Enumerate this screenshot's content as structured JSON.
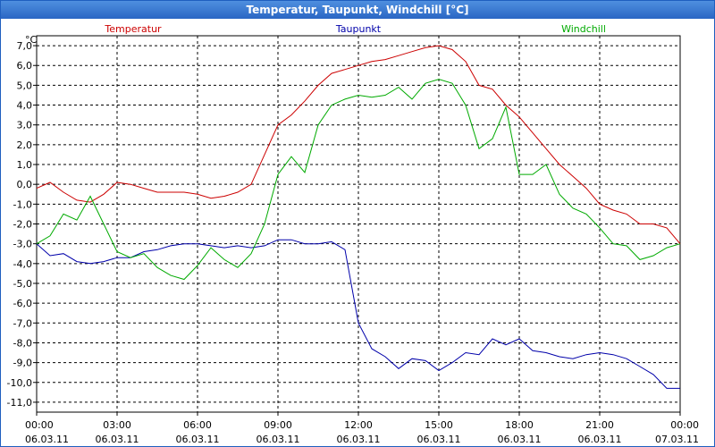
{
  "window": {
    "title": "Temperatur, Taupunkt, Windchill [°C]"
  },
  "chart_data": {
    "type": "line",
    "title": "Temperatur, Taupunkt, Windchill [°C]",
    "ylabel": "°C",
    "ylim": [
      -11.5,
      7.5
    ],
    "xlim": [
      0,
      24
    ],
    "y_ticks": [
      7,
      6,
      5,
      4,
      3,
      2,
      1,
      0,
      -1,
      -2,
      -3,
      -4,
      -5,
      -6,
      -7,
      -8,
      -9,
      -10,
      -11
    ],
    "y_tick_labels": [
      "7,0",
      "6,0",
      "5,0",
      "4,0",
      "3,0",
      "2,0",
      "1,0",
      "0,0",
      "-1,0",
      "-2,0",
      "-3,0",
      "-4,0",
      "-5,0",
      "-6,0",
      "-7,0",
      "-8,0",
      "-9,0",
      "-10,0",
      "-11,0"
    ],
    "x_ticks": [
      {
        "hour": 0,
        "time": "00:00",
        "date": "06.03.11"
      },
      {
        "hour": 3,
        "time": "03:00",
        "date": "06.03.11"
      },
      {
        "hour": 6,
        "time": "06:00",
        "date": "06.03.11"
      },
      {
        "hour": 9,
        "time": "09:00",
        "date": "06.03.11"
      },
      {
        "hour": 12,
        "time": "12:00",
        "date": "06.03.11"
      },
      {
        "hour": 15,
        "time": "15:00",
        "date": "06.03.11"
      },
      {
        "hour": 18,
        "time": "18:00",
        "date": "06.03.11"
      },
      {
        "hour": 21,
        "time": "21:00",
        "date": "06.03.11"
      },
      {
        "hour": 24,
        "time": "00:00",
        "date": "07.03.11"
      }
    ],
    "grid": true,
    "series": [
      {
        "name": "Temperatur",
        "color": "#cc0000",
        "x": [
          0,
          0.5,
          1,
          1.5,
          2,
          2.5,
          3,
          3.5,
          4,
          4.5,
          5,
          5.5,
          6,
          6.5,
          7,
          7.5,
          8,
          8.5,
          9,
          9.5,
          10,
          10.5,
          11,
          11.5,
          12,
          12.5,
          13,
          13.5,
          14,
          14.5,
          15,
          15.5,
          16,
          16.5,
          17,
          17.5,
          18,
          18.5,
          19,
          19.5,
          20,
          20.5,
          21,
          21.5,
          22,
          22.5,
          23,
          23.5,
          24
        ],
        "values": [
          -0.2,
          0.1,
          -0.4,
          -0.8,
          -0.9,
          -0.5,
          0.1,
          0.0,
          -0.2,
          -0.4,
          -0.4,
          -0.4,
          -0.5,
          -0.7,
          -0.6,
          -0.4,
          0.0,
          1.5,
          3.0,
          3.5,
          4.2,
          5.0,
          5.6,
          5.8,
          6.0,
          6.2,
          6.3,
          6.5,
          6.7,
          6.9,
          7.0,
          6.8,
          6.2,
          5.0,
          4.8,
          4.0,
          3.4,
          2.6,
          1.8,
          1.0,
          0.4,
          -0.2,
          -1.0,
          -1.3,
          -1.5,
          -2.0,
          -2.0,
          -2.2,
          -3.0
        ]
      },
      {
        "name": "Taupunkt",
        "color": "#0000aa",
        "x": [
          0,
          0.5,
          1,
          1.5,
          2,
          2.5,
          3,
          3.5,
          4,
          4.5,
          5,
          5.5,
          6,
          6.5,
          7,
          7.5,
          8,
          8.5,
          9,
          9.5,
          10,
          10.5,
          11,
          11.5,
          12,
          12.5,
          13,
          13.5,
          14,
          14.5,
          15,
          15.5,
          16,
          16.5,
          17,
          17.5,
          18,
          18.5,
          19,
          19.5,
          20,
          20.5,
          21,
          21.5,
          22,
          22.5,
          23,
          23.5,
          24
        ],
        "values": [
          -3.0,
          -3.6,
          -3.5,
          -3.9,
          -4.0,
          -3.9,
          -3.7,
          -3.7,
          -3.4,
          -3.3,
          -3.1,
          -3.0,
          -3.0,
          -3.1,
          -3.2,
          -3.1,
          -3.2,
          -3.1,
          -2.8,
          -2.8,
          -3.0,
          -3.0,
          -2.9,
          -3.3,
          -7.0,
          -8.3,
          -8.7,
          -9.3,
          -8.8,
          -8.9,
          -9.4,
          -9.0,
          -8.5,
          -8.6,
          -7.8,
          -8.1,
          -7.8,
          -8.4,
          -8.5,
          -8.7,
          -8.8,
          -8.6,
          -8.5,
          -8.6,
          -8.8,
          -9.2,
          -9.6,
          -10.3,
          -10.3
        ]
      },
      {
        "name": "Windchill",
        "color": "#00aa00",
        "x": [
          0,
          0.5,
          1,
          1.5,
          2,
          2.5,
          3,
          3.5,
          4,
          4.5,
          5,
          5.5,
          6,
          6.5,
          7,
          7.5,
          8,
          8.5,
          9,
          9.5,
          10,
          10.5,
          11,
          11.5,
          12,
          12.5,
          13,
          13.5,
          14,
          14.5,
          15,
          15.5,
          16,
          16.5,
          17,
          17.5,
          18,
          18.5,
          19,
          19.5,
          20,
          20.5,
          21,
          21.5,
          22,
          22.5,
          23,
          23.5,
          24
        ],
        "values": [
          -3.0,
          -2.6,
          -1.5,
          -1.8,
          -0.6,
          -2.0,
          -3.4,
          -3.7,
          -3.5,
          -4.2,
          -4.6,
          -4.8,
          -4.1,
          -3.2,
          -3.8,
          -4.2,
          -3.5,
          -2.0,
          0.5,
          1.4,
          0.6,
          3.0,
          4.0,
          4.3,
          4.5,
          4.4,
          4.5,
          4.9,
          4.3,
          5.1,
          5.3,
          5.1,
          4.0,
          1.8,
          2.3,
          3.9,
          0.5,
          0.5,
          1.0,
          -0.5,
          -1.2,
          -1.5,
          -2.2,
          -3.0,
          -3.1,
          -3.8,
          -3.6,
          -3.2,
          -3.0
        ]
      }
    ]
  }
}
